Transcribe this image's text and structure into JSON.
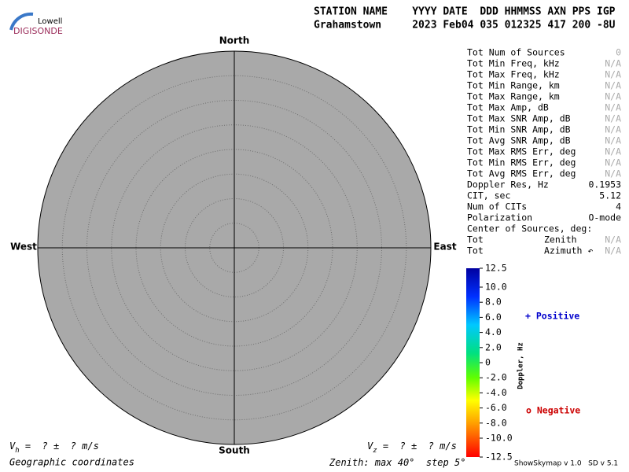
{
  "logo": {
    "small": "Lowell",
    "name": "DIGISONDE"
  },
  "header": {
    "labels": "STATION NAME    YYYY DATE  DDD HHMMSS AXN PPS IGP",
    "values": "Grahamstown     2023 Feb04 035 012325 417 200 -8U"
  },
  "skymap": {
    "north": "North",
    "south": "South",
    "west": "West",
    "east": "East",
    "coordinates": "Geographic coordinates",
    "zenith": {
      "label": "Zenith: max",
      "max": 40,
      "step_label": "step",
      "step": 5,
      "unit": "°"
    }
  },
  "stats": {
    "rows": [
      {
        "label": "Tot Num of Sources",
        "value": "0",
        "color": "#aaaaaa"
      },
      {
        "label": "Tot Min Freq, kHz",
        "value": "N/A",
        "color": "#aaaaaa"
      },
      {
        "label": "Tot Max Freq, kHz",
        "value": "N/A",
        "color": "#aaaaaa"
      },
      {
        "label": "Tot Min Range, km",
        "value": "N/A",
        "color": "#aaaaaa"
      },
      {
        "label": "Tot Max Range, km",
        "value": "N/A",
        "color": "#aaaaaa"
      },
      {
        "label": "Tot Max Amp, dB",
        "value": "N/A",
        "color": "#aaaaaa"
      },
      {
        "label": "Tot Max SNR Amp, dB",
        "value": "N/A",
        "color": "#aaaaaa"
      },
      {
        "label": "Tot Min SNR Amp, dB",
        "value": "N/A",
        "color": "#aaaaaa"
      },
      {
        "label": "Tot Avg SNR Amp, dB",
        "value": "N/A",
        "color": "#aaaaaa"
      },
      {
        "label": "Tot Max RMS Err, deg",
        "value": "N/A",
        "color": "#aaaaaa"
      },
      {
        "label": "Tot Min RMS Err, deg",
        "value": "N/A",
        "color": "#aaaaaa"
      },
      {
        "label": "Tot Avg RMS Err, deg",
        "value": "N/A",
        "color": "#aaaaaa"
      },
      {
        "label": "Doppler Res, Hz",
        "value": "0.1953",
        "color": "#000000"
      },
      {
        "label": "CIT, sec",
        "value": "5.12",
        "color": "#000000"
      },
      {
        "label": "Num of CITs",
        "value": "4",
        "color": "#000000"
      },
      {
        "label": "Polarization",
        "value": "O-mode",
        "color": "#000000"
      }
    ],
    "center_title": "Center of Sources, deg:",
    "center_rows": [
      {
        "label": "Tot",
        "quantity": "Zenith",
        "value": "N/A",
        "color": "#aaaaaa"
      },
      {
        "label": "Tot",
        "quantity": "Azimuth ↶",
        "value": "N/A",
        "color": "#aaaaaa"
      }
    ]
  },
  "colorbar": {
    "title": "Doppler, Hz",
    "lim": [
      -12.5,
      12.5
    ],
    "ticks": [
      12.5,
      {
        "value": 10,
        "label": "10.0"
      },
      {
        "value": 8,
        "label": "8.0"
      },
      {
        "value": 6,
        "label": "6.0"
      },
      {
        "value": 4,
        "label": "4.0"
      },
      {
        "value": 2,
        "label": "2.0"
      },
      0,
      {
        "value": -2,
        "label": "-2.0"
      },
      {
        "value": -4,
        "label": "-4.0"
      },
      {
        "value": -6,
        "label": "-6.0"
      },
      {
        "value": -8,
        "label": "-8.0"
      },
      {
        "value": -10,
        "label": "-10.0"
      },
      -12.5
    ],
    "positive": "+ Positive",
    "positive_color": "#0000cc",
    "negative": "o Negative",
    "negative_color": "#cc0000"
  },
  "velocity": {
    "horizontal": {
      "symbol": "V",
      "subscript": "h",
      "text": " =  ? ±  ? m/s"
    },
    "vertical": {
      "symbol": "V",
      "subscript": "z",
      "text": " =  ? ±  ? m/s"
    }
  },
  "version": "ShowSkymap v 1.0   SD v 5.1"
}
